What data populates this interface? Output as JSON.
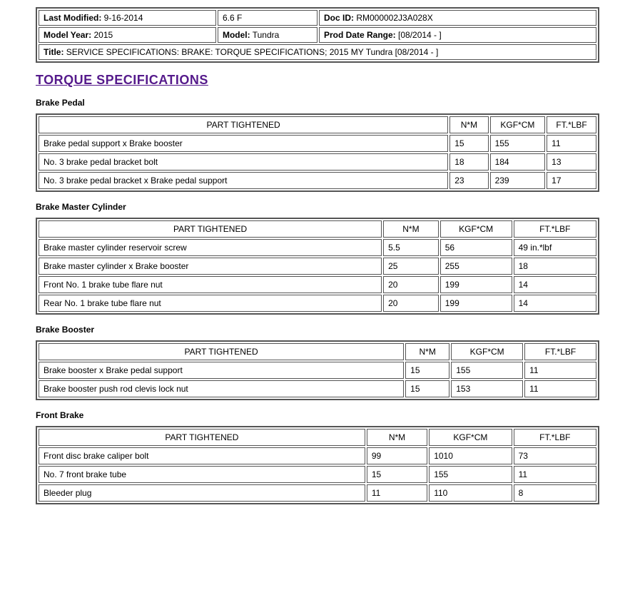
{
  "header": {
    "lastModifiedLabel": "Last Modified:",
    "lastModified": "9-16-2014",
    "version": "6.6 F",
    "docIdLabel": "Doc ID:",
    "docId": "RM000002J3A028X",
    "modelYearLabel": "Model Year:",
    "modelYear": "2015",
    "modelLabel": "Model:",
    "model": "Tundra",
    "prodDateLabel": "Prod Date Range:",
    "prodDate": "[08/2014 -            ]",
    "titleLabel": "Title:",
    "title": "SERVICE SPECIFICATIONS: BRAKE: TORQUE SPECIFICATIONS; 2015 MY Tundra [08/2014 -        ]"
  },
  "mainTitle": "TORQUE SPECIFICATIONS",
  "columns": {
    "part": "PART TIGHTENED",
    "nm": "N*M",
    "kgf": "KGF*CM",
    "ft": "FT.*LBF"
  },
  "sections": [
    {
      "title": "Brake Pedal",
      "widths": [
        "74%",
        "7%",
        "10%",
        "9%"
      ],
      "rows": [
        {
          "part": "Brake pedal support x Brake booster",
          "nm": "15",
          "kgf": "155",
          "ft": "11"
        },
        {
          "part": "No. 3 brake pedal bracket bolt",
          "nm": "18",
          "kgf": "184",
          "ft": "13"
        },
        {
          "part": "No. 3 brake pedal bracket x Brake pedal support",
          "nm": "23",
          "kgf": "239",
          "ft": "17"
        }
      ]
    },
    {
      "title": "Brake Master Cylinder",
      "widths": [
        "62%",
        "10%",
        "13%",
        "15%"
      ],
      "rows": [
        {
          "part": "Brake master cylinder reservoir screw",
          "nm": "5.5",
          "kgf": "56",
          "ft": "49 in.*lbf"
        },
        {
          "part": "Brake master cylinder x Brake booster",
          "nm": "25",
          "kgf": "255",
          "ft": "18"
        },
        {
          "part": "Front No. 1 brake tube flare nut",
          "nm": "20",
          "kgf": "199",
          "ft": "14"
        },
        {
          "part": "Rear No. 1 brake tube flare nut",
          "nm": "20",
          "kgf": "199",
          "ft": "14"
        }
      ]
    },
    {
      "title": "Brake Booster",
      "widths": [
        "66%",
        "8%",
        "13%",
        "13%"
      ],
      "rows": [
        {
          "part": "Brake booster x Brake pedal support",
          "nm": "15",
          "kgf": "155",
          "ft": "11"
        },
        {
          "part": "Brake booster push rod clevis lock nut",
          "nm": "15",
          "kgf": "153",
          "ft": "11"
        }
      ]
    },
    {
      "title": "Front Brake",
      "widths": [
        "59%",
        "11%",
        "15%",
        "15%"
      ],
      "rows": [
        {
          "part": "Front disc brake caliper bolt",
          "nm": "99",
          "kgf": "1010",
          "ft": "73"
        },
        {
          "part": "No. 7 front brake tube",
          "nm": "15",
          "kgf": "155",
          "ft": "11"
        },
        {
          "part": "Bleeder plug",
          "nm": "11",
          "kgf": "110",
          "ft": "8"
        }
      ]
    }
  ]
}
